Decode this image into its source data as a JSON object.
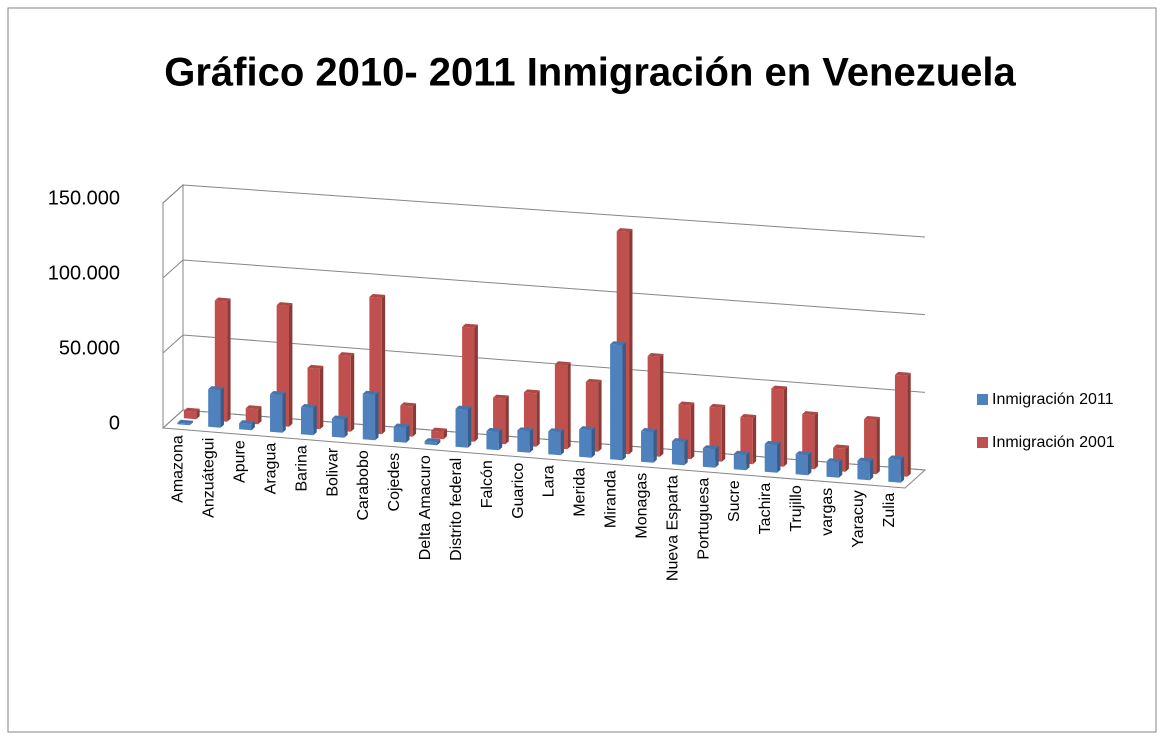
{
  "chart_data": {
    "type": "bar3d",
    "title": "Gráfico 2010- 2011  Inmigración en Venezuela",
    "categories": [
      "Amazona",
      "Anzuátegui",
      "Apure",
      "Aragua",
      "Barina",
      "Bolivar",
      "Carabobo",
      "Cojedes",
      "Delta Amacuro",
      "Distrito federal",
      "Falcón",
      "Guarico",
      "Lara",
      "Merida",
      "Miranda",
      "Monagas",
      "Nueva Esparta",
      "Portuguesa",
      "Sucre",
      "Tachira",
      "Trujillo",
      "vargas",
      "Yaracuy",
      "Zulia"
    ],
    "series": [
      {
        "name": "Inmigración 2011",
        "color": "#4f81bd",
        "values": [
          1000,
          25000,
          4000,
          25000,
          18000,
          12000,
          30000,
          10000,
          2000,
          25000,
          12000,
          14000,
          15000,
          18000,
          75000,
          20000,
          15000,
          12000,
          10000,
          18000,
          13000,
          10000,
          12000,
          15000
        ]
      },
      {
        "name": "Inmigración 2001",
        "color": "#c0504d",
        "values": [
          5000,
          80000,
          10000,
          80000,
          40000,
          50000,
          90000,
          20000,
          5000,
          75000,
          30000,
          35000,
          55000,
          45000,
          145000,
          65000,
          35000,
          35000,
          30000,
          50000,
          35000,
          15000,
          35000,
          65000
        ]
      }
    ],
    "ylim": [
      0,
      150000
    ],
    "yticks": [
      0,
      {
        "value": 50000,
        "label": "50.000"
      },
      {
        "value": 100000,
        "label": "100.000"
      },
      {
        "value": 150000,
        "label": "150.000"
      }
    ],
    "grid": true,
    "legend": "right"
  }
}
